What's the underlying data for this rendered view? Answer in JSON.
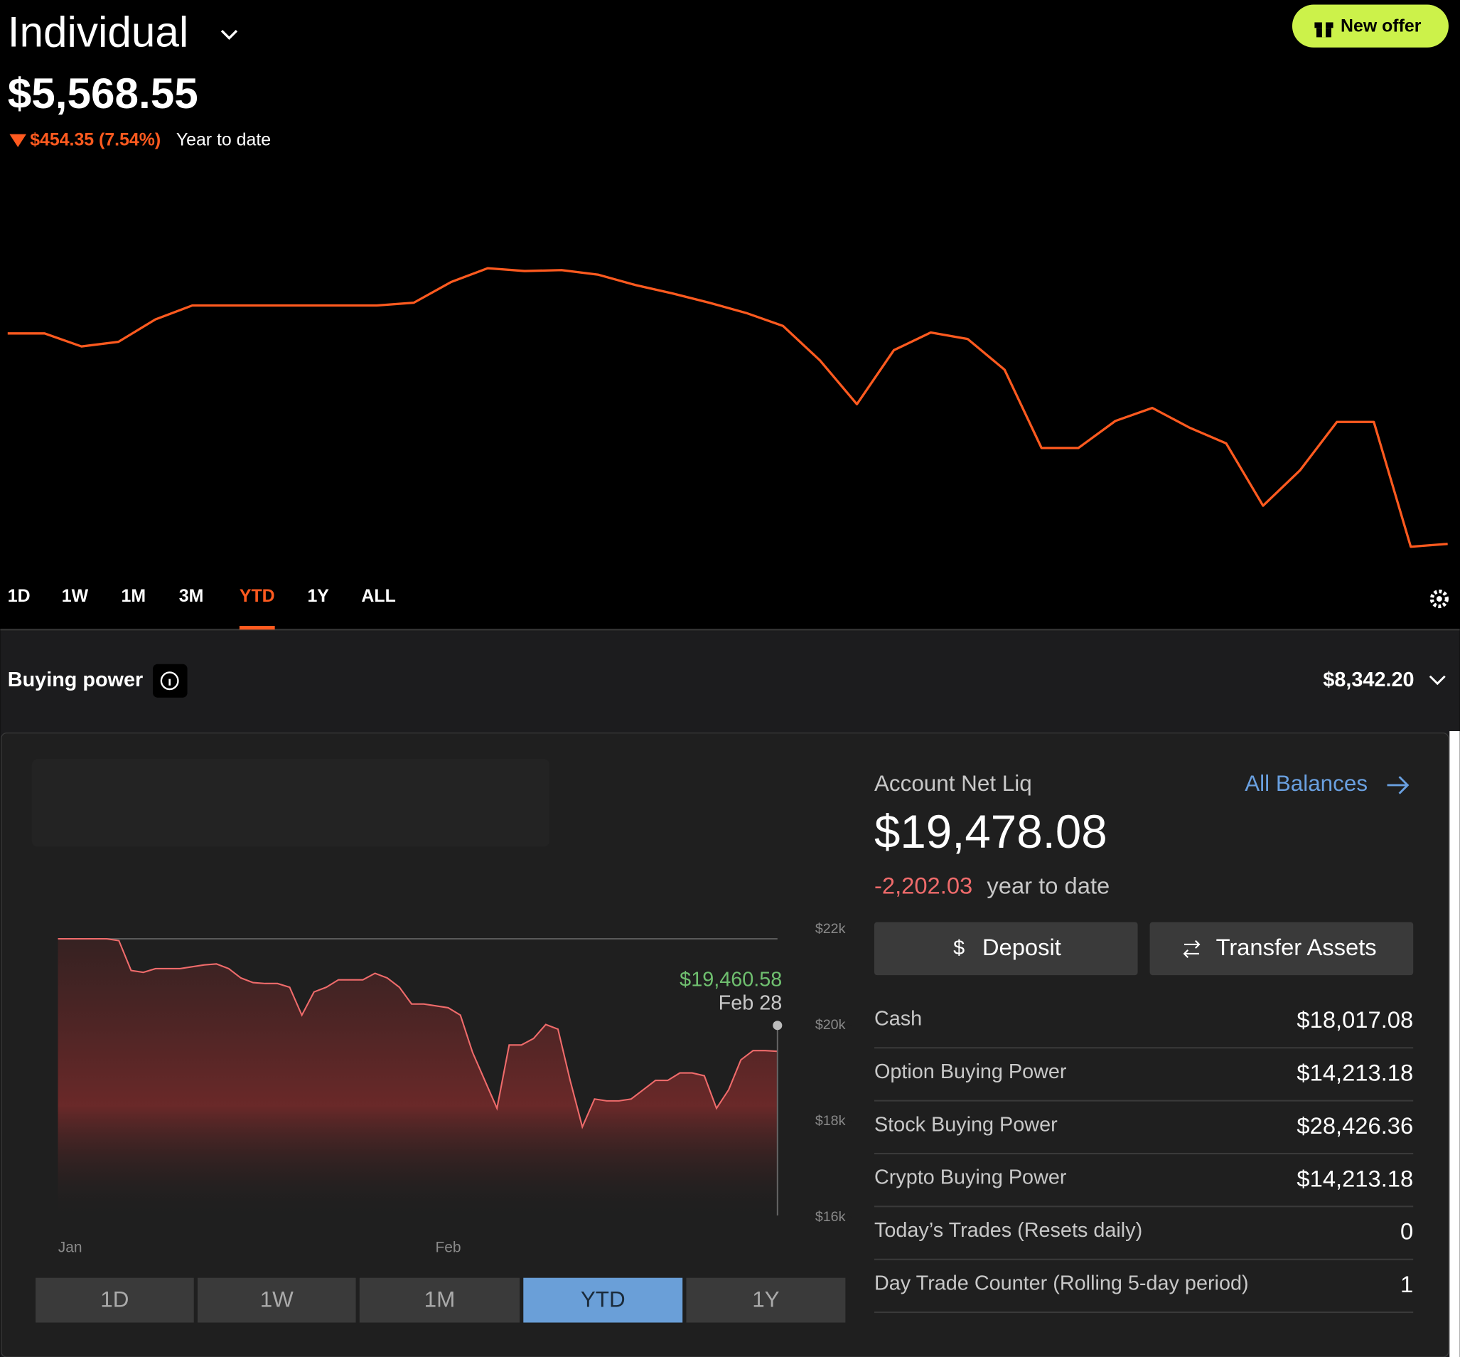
{
  "header": {
    "account": "Individual",
    "offer_button": "New offer",
    "balance": "$5,568.55",
    "change": "$454.35 (7.54%)",
    "change_period": "Year to date"
  },
  "range_tabs": {
    "items": [
      "1D",
      "1W",
      "1M",
      "3M",
      "YTD",
      "1Y",
      "ALL"
    ],
    "active": "YTD"
  },
  "buying_power": {
    "label": "Buying power",
    "value": "$8,342.20"
  },
  "account": {
    "title": "Account Net Liq",
    "link": "All Balances",
    "net_liq": "$19,478.08",
    "change": "-2,202.03",
    "change_period": "year to date",
    "buttons": [
      "Deposit",
      "Transfer Assets"
    ],
    "rows": [
      [
        "Cash",
        "$18,017.08"
      ],
      [
        "Option Buying Power",
        "$14,213.18"
      ],
      [
        "Stock Buying Power",
        "$28,426.36"
      ],
      [
        "Crypto Buying Power",
        "$14,213.18"
      ],
      [
        "Today’s Trades (Resets daily)",
        0
      ],
      [
        "Day Trade Counter (Rolling 5-day period)",
        1
      ]
    ]
  },
  "bottom_tabs": {
    "items": [
      "1D",
      "1W",
      "1M",
      "YTD",
      "1Y"
    ],
    "active": "YTD"
  },
  "chart_data": [
    {
      "type": "line",
      "color": "#ff5a1f",
      "values": [
        6022.8,
        6022.8,
        5994.7,
        6004.7,
        6053.0,
        6083.1,
        6083.1,
        6083.1,
        6083.1,
        6083.1,
        6083.1,
        6089.1,
        6133.4,
        6163.5,
        6157.5,
        6159.5,
        6149.5,
        6127.3,
        6109.2,
        6089.1,
        6067.0,
        6038.9,
        5964.5,
        5870.1,
        5986.6,
        6024.8,
        6010.8,
        5944.4,
        5775.6,
        5775.6,
        5833.9,
        5862.0,
        5819.8,
        5785.6,
        5651.0,
        5727.3,
        5831.8,
        5831.8,
        5562.5,
        5568.55
      ]
    },
    {
      "type": "line",
      "color": "#ef6b6b",
      "categories": [
        null,
        "Jan",
        null,
        null,
        null,
        null,
        null,
        null,
        null,
        null,
        null,
        null,
        null,
        null,
        null,
        null,
        null,
        null,
        null,
        null,
        null,
        null,
        null,
        null,
        null,
        null,
        null,
        null,
        null,
        null,
        null,
        null,
        "Feb",
        null,
        null,
        null,
        null,
        null,
        null,
        null,
        null,
        null,
        null,
        null,
        null,
        null,
        null,
        null,
        null,
        null,
        null,
        null,
        null,
        null,
        null,
        null,
        null,
        null,
        null,
        null
      ],
      "values": [
        21806,
        21806,
        21806,
        21806,
        21806,
        21767,
        21146,
        21107,
        21184,
        21184,
        21184,
        21223,
        21262,
        21282,
        21184,
        20990,
        20893,
        20874,
        20874,
        20796,
        20214,
        20699,
        20796,
        20951,
        20951,
        20951,
        21087,
        20990,
        20796,
        20447,
        20447,
        20408,
        20369,
        20214,
        19437,
        18854,
        18272,
        19592,
        19592,
        19728,
        20019,
        19922,
        18854,
        17884,
        18466,
        18427,
        18427,
        18466,
        18660,
        18854,
        18854,
        19010,
        19010,
        18951,
        18272,
        18660,
        19282,
        19476,
        19476,
        19460.58
      ],
      "tooltip": {
        "value": "$19,460.58",
        "date": "Feb 28"
      },
      "ylim": [
        16000,
        22000
      ],
      "yticks": [
        {
          "value": 22000,
          "label": "$22k"
        },
        {
          "value": 20000,
          "label": "$20k"
        },
        {
          "value": 18000,
          "label": "$18k"
        },
        {
          "value": 16000,
          "label": "$16k"
        }
      ]
    }
  ]
}
